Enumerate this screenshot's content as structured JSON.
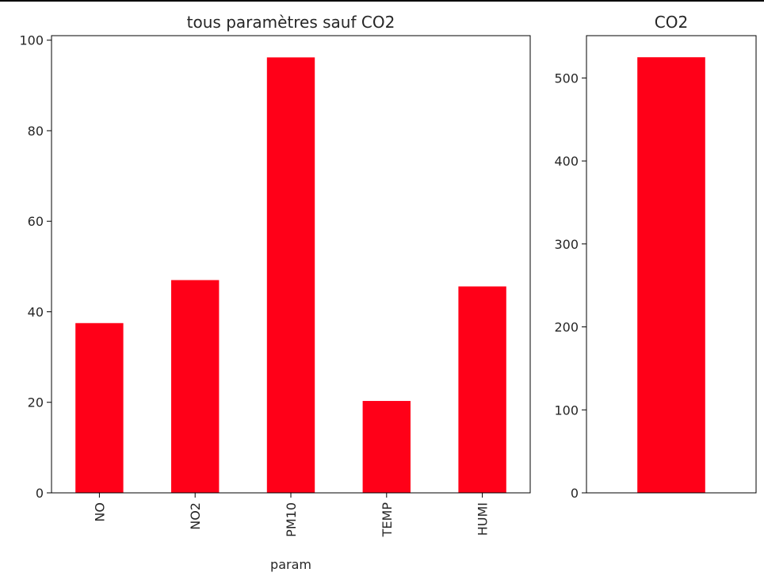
{
  "chart_data": [
    {
      "type": "bar",
      "title": "tous paramètres sauf CO2",
      "xlabel": "param",
      "ylabel": "",
      "categories": [
        "NO",
        "NO2",
        "PM10",
        "TEMP",
        "HUMI"
      ],
      "values": [
        37.5,
        47.0,
        96.2,
        20.3,
        45.6
      ],
      "ylim": [
        0,
        101
      ],
      "yticks": [
        0,
        20,
        40,
        60,
        80,
        100
      ],
      "bar_color": "#ff0018",
      "grid": false,
      "legend": "none"
    },
    {
      "type": "bar",
      "title": "CO2",
      "xlabel": "",
      "ylabel": "",
      "categories": [
        ""
      ],
      "values": [
        525
      ],
      "ylim": [
        0,
        551
      ],
      "yticks": [
        0,
        100,
        200,
        300,
        400,
        500
      ],
      "bar_color": "#ff0018",
      "grid": false,
      "legend": "none"
    }
  ]
}
